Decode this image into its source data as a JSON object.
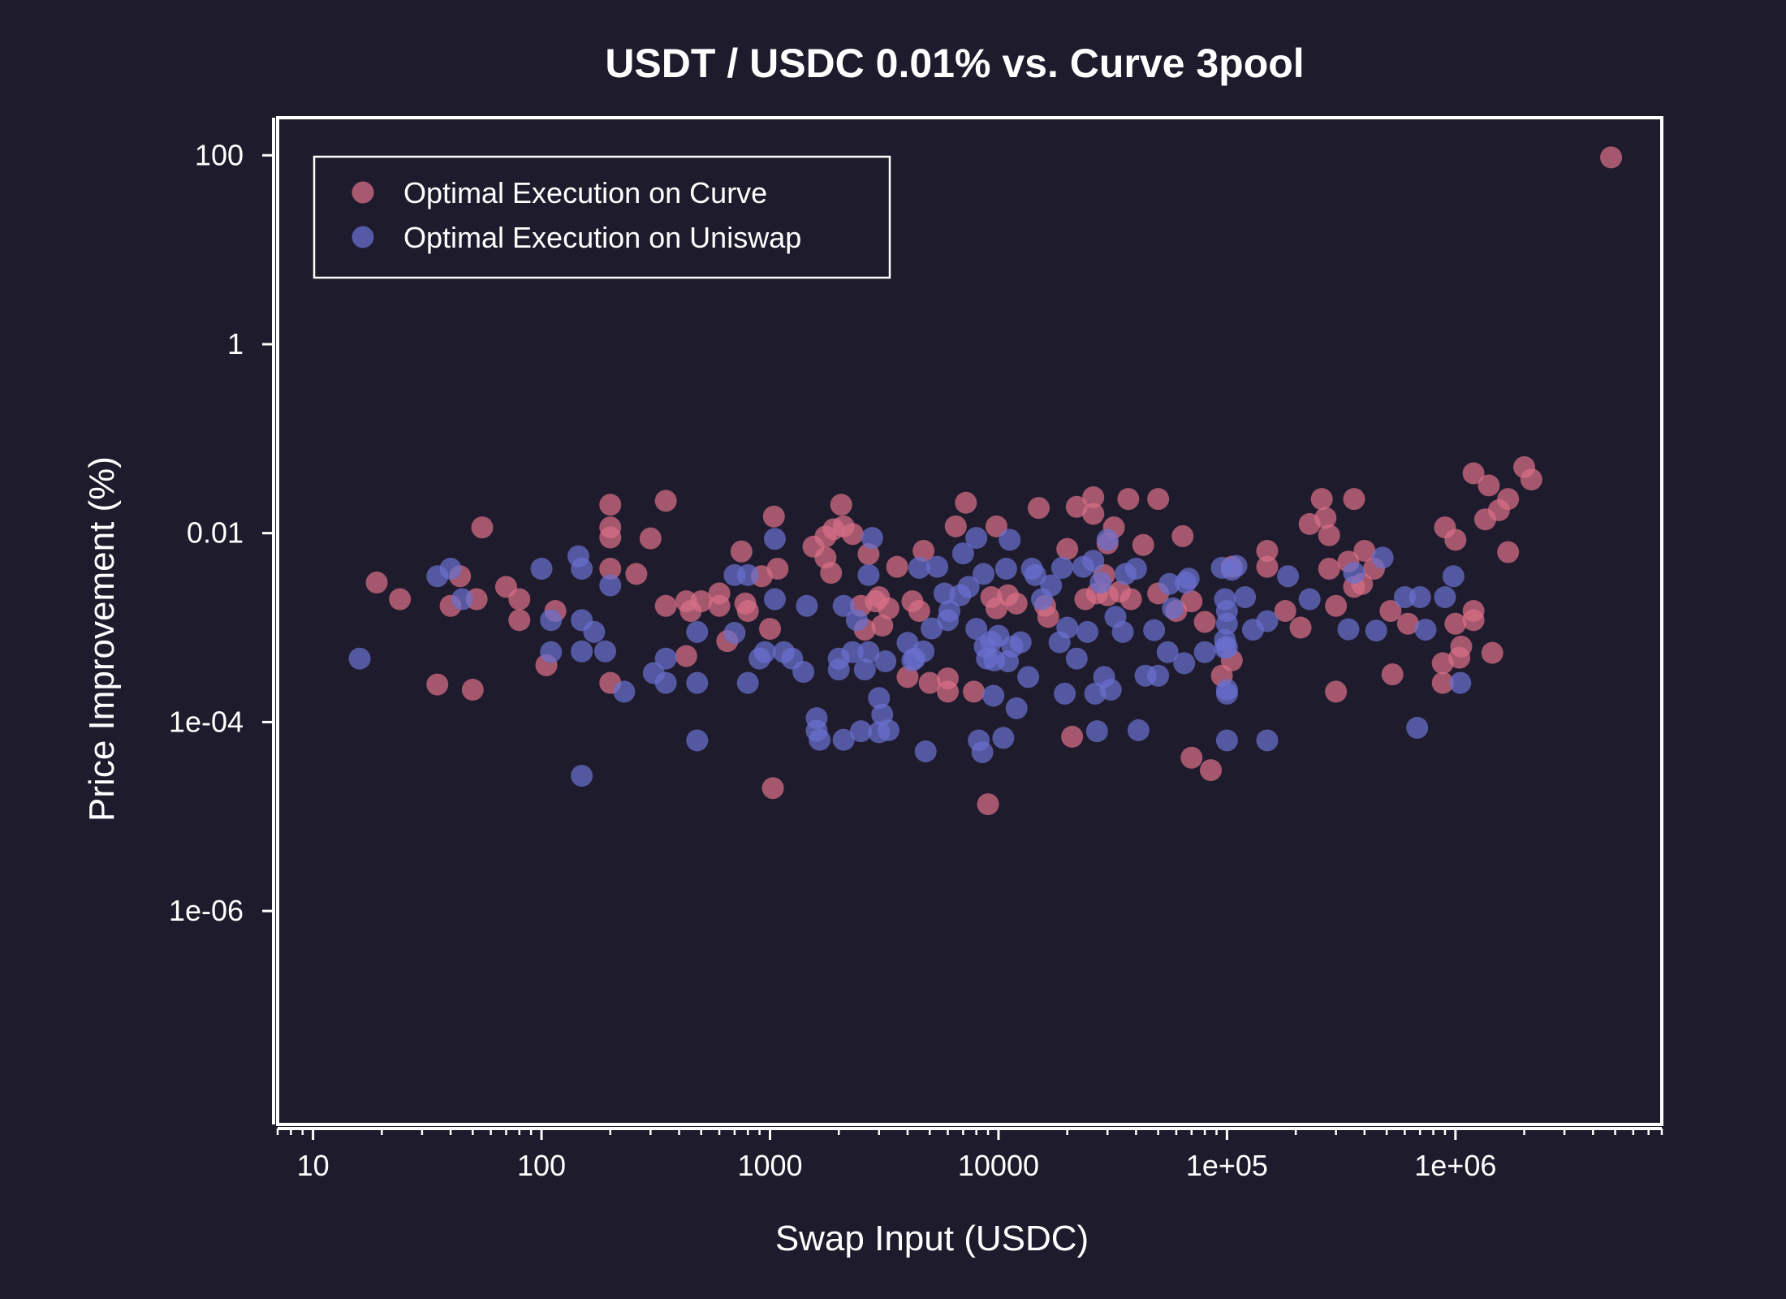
{
  "chart_data": {
    "type": "scatter",
    "title": "USDT / USDC 0.01% vs. Curve 3pool",
    "xlabel": "Swap Input  (USDC)",
    "ylabel": "Price Improvement  (%)",
    "x_scale": "log",
    "y_scale": "log",
    "xlim": [
      7,
      8000000
    ],
    "ylim": [
      5.5e-09,
      250
    ],
    "x_ticks": [
      10,
      100,
      1000,
      10000,
      100000,
      1000000
    ],
    "x_tick_labels": [
      "10",
      "100",
      "1000",
      "10000",
      "1e+05",
      "1e+06"
    ],
    "y_ticks": [
      1e-06,
      0.0001,
      0.01,
      1,
      100
    ],
    "y_tick_labels": [
      "1e-06",
      "1e-04",
      "0.01",
      "1",
      "100"
    ],
    "grid": false,
    "legend_position": "top-left",
    "colors": {
      "background": "#1e1b2c",
      "axes": "#ffffff",
      "curve": "#d86f86",
      "uniswap": "#6a70cf"
    },
    "series": [
      {
        "name": "Optimal Execution on Curve",
        "color": "#d86f86",
        "points": [
          [
            19,
            0.003
          ],
          [
            24,
            0.002
          ],
          [
            35,
            0.00025
          ],
          [
            40,
            0.0017
          ],
          [
            44,
            0.0035
          ],
          [
            50,
            0.00022
          ],
          [
            52,
            0.002
          ],
          [
            55,
            0.0115
          ],
          [
            70,
            0.0027
          ],
          [
            80,
            0.002
          ],
          [
            80,
            0.0012
          ],
          [
            105,
            0.0004
          ],
          [
            115,
            0.0015
          ],
          [
            200,
            0.02
          ],
          [
            200,
            0.0115
          ],
          [
            200,
            0.009
          ],
          [
            200,
            0.0042
          ],
          [
            200,
            0.00026
          ],
          [
            260,
            0.0037
          ],
          [
            300,
            0.0088
          ],
          [
            350,
            0.022
          ],
          [
            350,
            0.0017
          ],
          [
            430,
            0.0019
          ],
          [
            430,
            0.0005
          ],
          [
            450,
            0.0015
          ],
          [
            500,
            0.0019
          ],
          [
            600,
            0.0023
          ],
          [
            600,
            0.0017
          ],
          [
            650,
            0.00072
          ],
          [
            750,
            0.0064
          ],
          [
            780,
            0.0018
          ],
          [
            800,
            0.0015
          ],
          [
            920,
            0.0035
          ],
          [
            1000,
            0.00097
          ],
          [
            1030,
            2e-05
          ],
          [
            1040,
            0.015
          ],
          [
            1080,
            0.0042
          ],
          [
            1550,
            0.0072
          ],
          [
            1750,
            0.0055
          ],
          [
            1750,
            0.0092
          ],
          [
            1850,
            0.0038
          ],
          [
            1900,
            0.011
          ],
          [
            2050,
            0.02
          ],
          [
            2100,
            0.0118
          ],
          [
            2300,
            0.0098
          ],
          [
            2500,
            0.0017
          ],
          [
            2600,
            0.00095
          ],
          [
            2700,
            0.006
          ],
          [
            2900,
            0.0019
          ],
          [
            3000,
            0.0021
          ],
          [
            3100,
            0.00105
          ],
          [
            3300,
            0.0016
          ],
          [
            3600,
            0.0044
          ],
          [
            4000,
            0.0003
          ],
          [
            4200,
            0.0019
          ],
          [
            4500,
            0.0015
          ],
          [
            4700,
            0.0065
          ],
          [
            5000,
            0.00026
          ],
          [
            6000,
            0.00029
          ],
          [
            6000,
            0.00021
          ],
          [
            6500,
            0.0118
          ],
          [
            7200,
            0.021
          ],
          [
            7800,
            0.00021
          ],
          [
            9000,
            1.35e-05
          ],
          [
            9300,
            0.0021
          ],
          [
            9800,
            0.0016
          ],
          [
            9800,
            0.0118
          ],
          [
            11000,
            0.0022
          ],
          [
            12000,
            0.0018
          ],
          [
            15000,
            0.0185
          ],
          [
            16000,
            0.0017
          ],
          [
            16500,
            0.0013
          ],
          [
            20000,
            0.0068
          ],
          [
            21000,
            7e-05
          ],
          [
            22000,
            0.019
          ],
          [
            24000,
            0.002
          ],
          [
            26000,
            0.016
          ],
          [
            26000,
            0.024
          ],
          [
            27000,
            0.0023
          ],
          [
            29000,
            0.0036
          ],
          [
            30000,
            0.0022
          ],
          [
            30000,
            0.0078
          ],
          [
            32000,
            0.0115
          ],
          [
            34000,
            0.0024
          ],
          [
            37000,
            0.023
          ],
          [
            38000,
            0.002
          ],
          [
            43000,
            0.0075
          ],
          [
            50000,
            0.0023
          ],
          [
            50000,
            0.023
          ],
          [
            60000,
            0.0015
          ],
          [
            64000,
            0.0093
          ],
          [
            70000,
            0.0019
          ],
          [
            70000,
            4.2e-05
          ],
          [
            80000,
            0.00115
          ],
          [
            85000,
            3.1e-05
          ],
          [
            95000,
            0.00031
          ],
          [
            105000,
            0.00045
          ],
          [
            105000,
            0.0044
          ],
          [
            150000,
            0.0065
          ],
          [
            150000,
            0.0044
          ],
          [
            180000,
            0.0015
          ],
          [
            210000,
            0.001
          ],
          [
            230000,
            0.0125
          ],
          [
            260000,
            0.023
          ],
          [
            270000,
            0.0145
          ],
          [
            280000,
            0.0095
          ],
          [
            280000,
            0.0042
          ],
          [
            300000,
            0.0017
          ],
          [
            300000,
            0.00021
          ],
          [
            340000,
            0.005
          ],
          [
            360000,
            0.0027
          ],
          [
            360000,
            0.023
          ],
          [
            390000,
            0.0029
          ],
          [
            400000,
            0.0065
          ],
          [
            440000,
            0.0042
          ],
          [
            520000,
            0.0015
          ],
          [
            530000,
            0.00032
          ],
          [
            620000,
            0.0011
          ],
          [
            880000,
            0.00026
          ],
          [
            880000,
            0.00042
          ],
          [
            900000,
            0.0115
          ],
          [
            1000000,
            0.0085
          ],
          [
            1000000,
            0.0011
          ],
          [
            1040000,
            0.00048
          ],
          [
            1060000,
            0.00063
          ],
          [
            1200000,
            0.043
          ],
          [
            1200000,
            0.0012
          ],
          [
            1200000,
            0.0015
          ],
          [
            1350000,
            0.014
          ],
          [
            1400000,
            0.032
          ],
          [
            1450000,
            0.00054
          ],
          [
            1550000,
            0.0175
          ],
          [
            1700000,
            0.0063
          ],
          [
            1700000,
            0.023
          ],
          [
            2000000,
            0.05
          ],
          [
            2150000,
            0.037
          ],
          [
            4800000,
            95
          ]
        ]
      },
      {
        "name": "Optimal Execution on Uniswap",
        "color": "#6a70cf",
        "points": [
          [
            16,
            0.00047
          ],
          [
            35,
            0.0035
          ],
          [
            40,
            0.0042
          ],
          [
            45,
            0.002
          ],
          [
            100,
            0.0042
          ],
          [
            110,
            0.0012
          ],
          [
            110,
            0.00055
          ],
          [
            145,
            0.0057
          ],
          [
            150,
            0.0042
          ],
          [
            150,
            0.0012
          ],
          [
            150,
            0.00056
          ],
          [
            150,
            2.7e-05
          ],
          [
            170,
            0.0009
          ],
          [
            190,
            0.00056
          ],
          [
            200,
            0.0028
          ],
          [
            230,
            0.00021
          ],
          [
            310,
            0.00033
          ],
          [
            350,
            0.00047
          ],
          [
            350,
            0.00026
          ],
          [
            480,
            0.00026
          ],
          [
            480,
            0.0009
          ],
          [
            480,
            6.4e-05
          ],
          [
            700,
            0.0036
          ],
          [
            700,
            0.00088
          ],
          [
            800,
            0.00026
          ],
          [
            800,
            0.0036
          ],
          [
            900,
            0.00047
          ],
          [
            950,
            0.00055
          ],
          [
            1050,
            0.0087
          ],
          [
            1050,
            0.002
          ],
          [
            1150,
            0.00055
          ],
          [
            1250,
            0.00047
          ],
          [
            1400,
            0.00034
          ],
          [
            1450,
            0.0017
          ],
          [
            1600,
            0.00011
          ],
          [
            1600,
            8.1e-05
          ],
          [
            1650,
            6.5e-05
          ],
          [
            2000,
            0.00036
          ],
          [
            2000,
            0.00047
          ],
          [
            2100,
            0.0017
          ],
          [
            2100,
            6.5e-05
          ],
          [
            2300,
            0.00055
          ],
          [
            2400,
            0.0012
          ],
          [
            2500,
            8e-05
          ],
          [
            2600,
            0.00036
          ],
          [
            2700,
            0.0036
          ],
          [
            2700,
            0.00055
          ],
          [
            2800,
            0.0089
          ],
          [
            3000,
            0.00018
          ],
          [
            3000,
            7.8e-05
          ],
          [
            3100,
            0.00012
          ],
          [
            3200,
            0.00044
          ],
          [
            3300,
            8.2e-05
          ],
          [
            4000,
            0.00069
          ],
          [
            4200,
            0.00045
          ],
          [
            4300,
            0.00047
          ],
          [
            4500,
            0.0043
          ],
          [
            4700,
            0.00056
          ],
          [
            4800,
            4.9e-05
          ],
          [
            5100,
            0.00098
          ],
          [
            5400,
            0.0044
          ],
          [
            5800,
            0.0023
          ],
          [
            6000,
            0.0012
          ],
          [
            6100,
            0.0015
          ],
          [
            6800,
            0.0022
          ],
          [
            7000,
            0.0061
          ],
          [
            7400,
            0.0027
          ],
          [
            8000,
            0.0089
          ],
          [
            8000,
            0.00097
          ],
          [
            8200,
            6.4e-05
          ],
          [
            8500,
            4.8e-05
          ],
          [
            8600,
            0.0037
          ],
          [
            8700,
            0.00063
          ],
          [
            8900,
            0.00047
          ],
          [
            9300,
            0.00071
          ],
          [
            9500,
            0.00019
          ],
          [
            9600,
            0.00045
          ],
          [
            10000,
            0.00082
          ],
          [
            10500,
            6.8e-05
          ],
          [
            10800,
            0.0042
          ],
          [
            11000,
            0.00044
          ],
          [
            11200,
            0.0085
          ],
          [
            11500,
            0.00063
          ],
          [
            12000,
            0.00014
          ],
          [
            12500,
            0.0007
          ],
          [
            13500,
            0.0003
          ],
          [
            14000,
            0.0042
          ],
          [
            14500,
            0.0036
          ],
          [
            15500,
            0.002
          ],
          [
            17000,
            0.0028
          ],
          [
            18500,
            0.0007
          ],
          [
            19000,
            0.0043
          ],
          [
            19500,
            0.0002
          ],
          [
            20000,
            0.001
          ],
          [
            22000,
            0.00047
          ],
          [
            23500,
            0.0044
          ],
          [
            24500,
            0.0009
          ],
          [
            26000,
            0.0051
          ],
          [
            26500,
            0.0002
          ],
          [
            27000,
            8e-05
          ],
          [
            28000,
            0.003
          ],
          [
            29000,
            0.0003
          ],
          [
            30000,
            0.0085
          ],
          [
            31000,
            0.00022
          ],
          [
            32500,
            0.0013
          ],
          [
            35000,
            0.0009
          ],
          [
            36000,
            0.0037
          ],
          [
            40000,
            0.0042
          ],
          [
            41000,
            8.2e-05
          ],
          [
            44000,
            0.00031
          ],
          [
            48000,
            0.00094
          ],
          [
            50000,
            0.00031
          ],
          [
            55000,
            0.00055
          ],
          [
            56000,
            0.0029
          ],
          [
            58000,
            0.0016
          ],
          [
            65000,
            0.00042
          ],
          [
            66000,
            0.003
          ],
          [
            68000,
            0.0033
          ],
          [
            80000,
            0.00055
          ],
          [
            95000,
            0.0043
          ],
          [
            98000,
            0.002
          ],
          [
            98000,
            0.00074
          ],
          [
            98000,
            0.00061
          ],
          [
            100000,
            0.0015
          ],
          [
            100000,
            0.0011
          ],
          [
            100000,
            0.00062
          ],
          [
            100000,
            0.0002
          ],
          [
            100000,
            0.00022
          ],
          [
            100000,
            6.4e-05
          ],
          [
            105000,
            0.0041
          ],
          [
            110000,
            0.0045
          ],
          [
            120000,
            0.0021
          ],
          [
            130000,
            0.00095
          ],
          [
            150000,
            0.00117
          ],
          [
            150000,
            6.4e-05
          ],
          [
            185000,
            0.0035
          ],
          [
            230000,
            0.002
          ],
          [
            340000,
            0.00096
          ],
          [
            360000,
            0.0038
          ],
          [
            450000,
            0.00093
          ],
          [
            480000,
            0.0055
          ],
          [
            600000,
            0.0021
          ],
          [
            680000,
            8.7e-05
          ],
          [
            700000,
            0.0021
          ],
          [
            740000,
            0.00095
          ],
          [
            900000,
            0.0021
          ],
          [
            980000,
            0.0035
          ],
          [
            1050000,
            0.00026
          ]
        ]
      }
    ]
  }
}
